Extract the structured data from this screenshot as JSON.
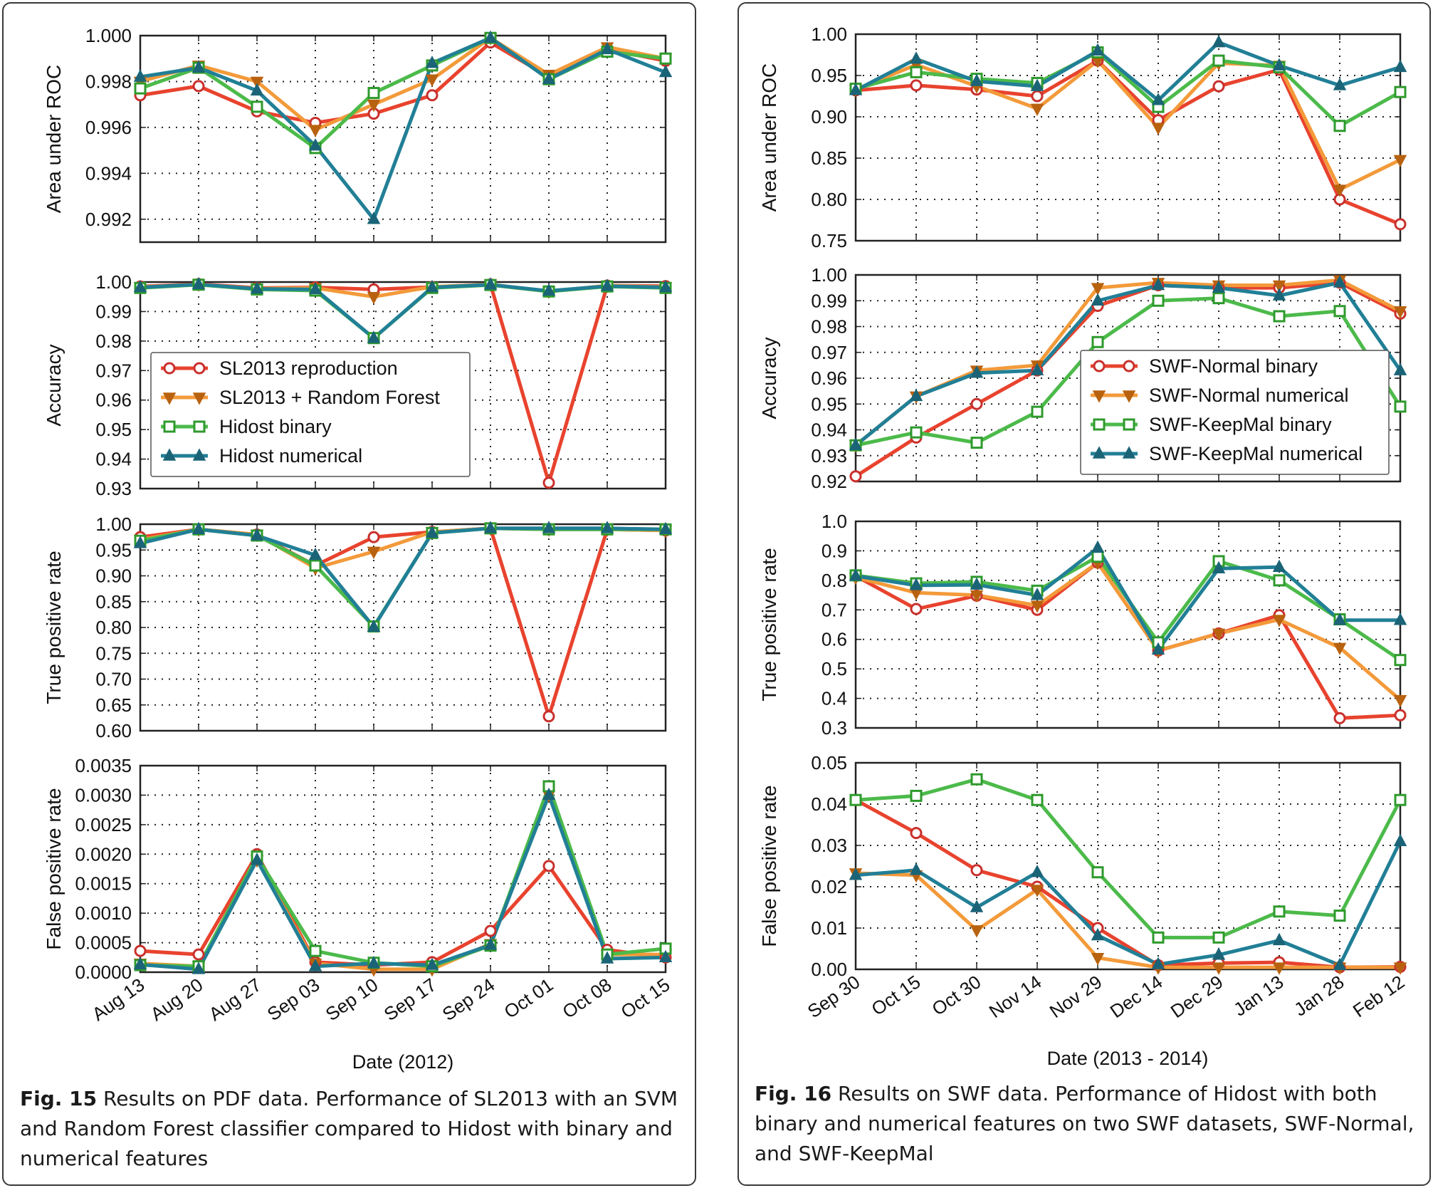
{
  "figures": {
    "fig15": {
      "caption_label": "Fig. 15",
      "caption_text": " Results on PDF data. Performance of SL2013 with an SVM and Random Forest classifier compared to Hidost with binary and numerical features"
    },
    "fig16": {
      "caption_label": "Fig. 16",
      "caption_text": " Results on SWF data. Performance of Hidost with both binary and numerical features on two SWF datasets, SWF-Normal, and SWF-KeepMal"
    }
  },
  "colors": {
    "red": "#e8432e",
    "orange": "#f39a3a",
    "green": "#4cba4a",
    "teal": "#217f96",
    "grid": "#222222",
    "axis": "#222222"
  },
  "chart_data": [
    {
      "figure": "fig15",
      "type": "line",
      "ylabel": "Area under ROC",
      "xlabel": "",
      "categories": [
        "Aug 13",
        "Aug 20",
        "Aug 27",
        "Sep 03",
        "Sep 10",
        "Sep 17",
        "Sep 24",
        "Oct 01",
        "Oct 08",
        "Oct 15"
      ],
      "ylim": [
        0.991,
        1.0
      ],
      "yticks": [
        "0.992",
        "0.994",
        "0.996",
        "0.998",
        "1.000"
      ],
      "yticks_values": [
        0.992,
        0.994,
        0.996,
        0.998,
        1.0
      ],
      "grid": true,
      "series": [
        {
          "name": "SL2013 reproduction",
          "color": "red",
          "marker": "circle",
          "values": [
            0.9974,
            0.9978,
            0.9967,
            0.9962,
            0.9966,
            0.9974,
            0.9997,
            0.9982,
            0.9994,
            0.9989
          ]
        },
        {
          "name": "SL2013 + Random Forest",
          "color": "orange",
          "marker": "tri-down",
          "values": [
            0.998,
            0.9987,
            0.998,
            0.9959,
            0.997,
            0.9981,
            0.9999,
            0.9983,
            0.9995,
            0.999
          ]
        },
        {
          "name": "Hidost binary",
          "color": "green",
          "marker": "square",
          "values": [
            0.9977,
            0.9986,
            0.9969,
            0.9951,
            0.9975,
            0.9987,
            0.9999,
            0.9981,
            0.9993,
            0.999
          ]
        },
        {
          "name": "Hidost numerical",
          "color": "teal",
          "marker": "tri-up",
          "values": [
            0.9982,
            0.9986,
            0.9976,
            0.9952,
            0.992,
            0.9988,
            0.9999,
            0.9981,
            0.9994,
            0.9984
          ]
        }
      ]
    },
    {
      "figure": "fig15",
      "type": "line",
      "ylabel": "Accuracy",
      "xlabel": "",
      "categories": [
        "Aug 13",
        "Aug 20",
        "Aug 27",
        "Sep 03",
        "Sep 10",
        "Sep 17",
        "Sep 24",
        "Oct 01",
        "Oct 08",
        "Oct 15"
      ],
      "ylim": [
        0.93,
        1.0
      ],
      "yticks": [
        "0.93",
        "0.94",
        "0.95",
        "0.96",
        "0.97",
        "0.98",
        "0.99",
        "1.00"
      ],
      "yticks_values": [
        0.93,
        0.94,
        0.95,
        0.96,
        0.97,
        0.98,
        0.99,
        1.0
      ],
      "grid": true,
      "legend": "lower-left",
      "series": [
        {
          "name": "SL2013 reproduction",
          "color": "red",
          "marker": "circle",
          "values": [
            0.9985,
            0.9993,
            0.998,
            0.9982,
            0.9975,
            0.9983,
            0.9992,
            0.932,
            0.9988,
            0.9986
          ]
        },
        {
          "name": "SL2013 + Random Forest",
          "color": "orange",
          "marker": "tri-down",
          "values": [
            0.9983,
            0.9992,
            0.9978,
            0.998,
            0.995,
            0.9984,
            0.9992,
            0.9968,
            0.9988,
            0.9983
          ]
        },
        {
          "name": "Hidost binary",
          "color": "green",
          "marker": "square",
          "values": [
            0.998,
            0.9991,
            0.9975,
            0.9971,
            0.981,
            0.998,
            0.999,
            0.9968,
            0.9985,
            0.998
          ]
        },
        {
          "name": "Hidost numerical",
          "color": "teal",
          "marker": "tri-up",
          "values": [
            0.9982,
            0.9992,
            0.9977,
            0.9975,
            0.981,
            0.9982,
            0.9991,
            0.997,
            0.9986,
            0.9982
          ]
        }
      ]
    },
    {
      "figure": "fig15",
      "type": "line",
      "ylabel": "True positive rate",
      "xlabel": "",
      "categories": [
        "Aug 13",
        "Aug 20",
        "Aug 27",
        "Sep 03",
        "Sep 10",
        "Sep 17",
        "Sep 24",
        "Oct 01",
        "Oct 08",
        "Oct 15"
      ],
      "ylim": [
        0.6,
        1.0
      ],
      "yticks": [
        "0.60",
        "0.65",
        "0.70",
        "0.75",
        "0.80",
        "0.85",
        "0.90",
        "0.95",
        "1.00"
      ],
      "yticks_values": [
        0.6,
        0.65,
        0.7,
        0.75,
        0.8,
        0.85,
        0.9,
        0.95,
        1.0
      ],
      "grid": true,
      "series": [
        {
          "name": "SL2013 reproduction",
          "color": "red",
          "marker": "circle",
          "values": [
            0.975,
            0.99,
            0.98,
            0.92,
            0.975,
            0.985,
            0.992,
            0.628,
            0.99,
            0.988
          ]
        },
        {
          "name": "SL2013 + Random Forest",
          "color": "orange",
          "marker": "tri-down",
          "values": [
            0.97,
            0.99,
            0.98,
            0.915,
            0.947,
            0.985,
            0.992,
            0.99,
            0.99,
            0.988
          ]
        },
        {
          "name": "Hidost binary",
          "color": "green",
          "marker": "square",
          "values": [
            0.968,
            0.99,
            0.978,
            0.92,
            0.802,
            0.983,
            0.992,
            0.99,
            0.99,
            0.99
          ]
        },
        {
          "name": "Hidost numerical",
          "color": "teal",
          "marker": "tri-up",
          "values": [
            0.963,
            0.99,
            0.978,
            0.94,
            0.801,
            0.983,
            0.992,
            0.992,
            0.992,
            0.99
          ]
        }
      ]
    },
    {
      "figure": "fig15",
      "type": "line",
      "ylabel": "False positive rate",
      "xlabel": "Date (2012)",
      "categories": [
        "Aug 13",
        "Aug 20",
        "Aug 27",
        "Sep 03",
        "Sep 10",
        "Sep 17",
        "Sep 24",
        "Oct 01",
        "Oct 08",
        "Oct 15"
      ],
      "ylim": [
        0.0,
        0.0035
      ],
      "yticks": [
        "0.0000",
        "0.0005",
        "0.0010",
        "0.0015",
        "0.0020",
        "0.0025",
        "0.0030",
        "0.0035"
      ],
      "yticks_values": [
        0.0,
        0.0005,
        0.001,
        0.0015,
        0.002,
        0.0025,
        0.003,
        0.0035
      ],
      "grid": true,
      "series": [
        {
          "name": "SL2013 reproduction",
          "color": "red",
          "marker": "circle",
          "values": [
            0.00036,
            0.0003,
            0.002,
            0.00017,
            0.00012,
            0.00017,
            0.0007,
            0.0018,
            0.00038,
            0.00025
          ]
        },
        {
          "name": "SL2013 + Random Forest",
          "color": "orange",
          "marker": "tri-down",
          "values": [
            0.00015,
            0.0001,
            0.0019,
            0.00015,
            5e-05,
            5e-05,
            0.00048,
            0.003,
            0.0003,
            0.0003
          ]
        },
        {
          "name": "Hidost binary",
          "color": "green",
          "marker": "square",
          "values": [
            0.00012,
            0.0001,
            0.00196,
            0.00036,
            0.00016,
            0.0001,
            0.00045,
            0.00315,
            0.0003,
            0.0004
          ]
        },
        {
          "name": "Hidost numerical",
          "color": "teal",
          "marker": "tri-up",
          "values": [
            0.00013,
            5e-05,
            0.0019,
            0.0001,
            0.00015,
            0.00012,
            0.00046,
            0.003,
            0.00023,
            0.00025
          ]
        }
      ]
    },
    {
      "figure": "fig16",
      "type": "line",
      "ylabel": "Area under ROC",
      "xlabel": "",
      "categories": [
        "Sep 30",
        "Oct 15",
        "Oct 30",
        "Nov 14",
        "Nov 29",
        "Dec 14",
        "Dec 29",
        "Jan 13",
        "Jan 28",
        "Feb 12"
      ],
      "ylim": [
        0.75,
        1.0
      ],
      "yticks": [
        "0.75",
        "0.80",
        "0.85",
        "0.90",
        "0.95",
        "1.00"
      ],
      "yticks_values": [
        0.75,
        0.8,
        0.85,
        0.9,
        0.95,
        1.0
      ],
      "grid": true,
      "series": [
        {
          "name": "SWF-Normal binary",
          "color": "red",
          "marker": "circle",
          "values": [
            0.932,
            0.938,
            0.933,
            0.925,
            0.968,
            0.896,
            0.937,
            0.957,
            0.8,
            0.77
          ]
        },
        {
          "name": "SWF-Normal numerical",
          "color": "orange",
          "marker": "tri-down",
          "values": [
            0.933,
            0.963,
            0.937,
            0.91,
            0.968,
            0.887,
            0.965,
            0.962,
            0.812,
            0.848
          ]
        },
        {
          "name": "SWF-KeepMal binary",
          "color": "green",
          "marker": "square",
          "values": [
            0.934,
            0.954,
            0.946,
            0.941,
            0.978,
            0.912,
            0.968,
            0.96,
            0.889,
            0.93
          ]
        },
        {
          "name": "SWF-KeepMal numerical",
          "color": "teal",
          "marker": "tri-up",
          "values": [
            0.932,
            0.97,
            0.943,
            0.937,
            0.98,
            0.92,
            0.99,
            0.962,
            0.938,
            0.96
          ]
        }
      ]
    },
    {
      "figure": "fig16",
      "type": "line",
      "ylabel": "Accuracy",
      "xlabel": "",
      "categories": [
        "Sep 30",
        "Oct 15",
        "Oct 30",
        "Nov 14",
        "Nov 29",
        "Dec 14",
        "Dec 29",
        "Jan 13",
        "Jan 28",
        "Feb 12"
      ],
      "ylim": [
        0.92,
        1.0
      ],
      "yticks": [
        "0.92",
        "0.93",
        "0.94",
        "0.95",
        "0.96",
        "0.97",
        "0.98",
        "0.99",
        "1.00"
      ],
      "yticks_values": [
        0.92,
        0.93,
        0.94,
        0.95,
        0.96,
        0.97,
        0.98,
        0.99,
        1.0
      ],
      "grid": true,
      "legend": "lower-right",
      "series": [
        {
          "name": "SWF-Normal binary",
          "color": "red",
          "marker": "circle",
          "values": [
            0.922,
            0.937,
            0.95,
            0.963,
            0.988,
            0.996,
            0.995,
            0.995,
            0.997,
            0.985
          ]
        },
        {
          "name": "SWF-Normal numerical",
          "color": "orange",
          "marker": "tri-down",
          "values": [
            0.934,
            0.953,
            0.963,
            0.965,
            0.995,
            0.997,
            0.996,
            0.996,
            0.998,
            0.986
          ]
        },
        {
          "name": "SWF-KeepMal binary",
          "color": "green",
          "marker": "square",
          "values": [
            0.934,
            0.939,
            0.935,
            0.947,
            0.974,
            0.99,
            0.991,
            0.984,
            0.986,
            0.949
          ]
        },
        {
          "name": "SWF-KeepMal numerical",
          "color": "teal",
          "marker": "tri-up",
          "values": [
            0.934,
            0.953,
            0.962,
            0.963,
            0.99,
            0.996,
            0.995,
            0.992,
            0.997,
            0.963
          ]
        }
      ]
    },
    {
      "figure": "fig16",
      "type": "line",
      "ylabel": "True positive rate",
      "xlabel": "",
      "categories": [
        "Sep 30",
        "Oct 15",
        "Oct 30",
        "Nov 14",
        "Nov 29",
        "Dec 14",
        "Dec 29",
        "Jan 13",
        "Jan 28",
        "Feb 12"
      ],
      "ylim": [
        0.3,
        1.0
      ],
      "yticks": [
        "0.3",
        "0.4",
        "0.5",
        "0.6",
        "0.7",
        "0.8",
        "0.9",
        "1.0"
      ],
      "yticks_values": [
        0.3,
        0.4,
        0.5,
        0.6,
        0.7,
        0.8,
        0.9,
        1.0
      ],
      "grid": true,
      "series": [
        {
          "name": "SWF-Normal binary",
          "color": "red",
          "marker": "circle",
          "values": [
            0.815,
            0.703,
            0.748,
            0.7,
            0.86,
            0.562,
            0.62,
            0.682,
            0.333,
            0.343
          ]
        },
        {
          "name": "SWF-Normal numerical",
          "color": "orange",
          "marker": "tri-down",
          "values": [
            0.81,
            0.758,
            0.75,
            0.715,
            0.86,
            0.562,
            0.62,
            0.667,
            0.572,
            0.395
          ]
        },
        {
          "name": "SWF-KeepMal binary",
          "color": "green",
          "marker": "square",
          "values": [
            0.817,
            0.79,
            0.795,
            0.765,
            0.88,
            0.59,
            0.865,
            0.8,
            0.668,
            0.53
          ]
        },
        {
          "name": "SWF-KeepMal numerical",
          "color": "teal",
          "marker": "tri-up",
          "values": [
            0.815,
            0.783,
            0.785,
            0.75,
            0.91,
            0.565,
            0.84,
            0.845,
            0.665,
            0.665
          ]
        }
      ]
    },
    {
      "figure": "fig16",
      "type": "line",
      "ylabel": "False positive rate",
      "xlabel": "Date (2013 - 2014)",
      "categories": [
        "Sep 30",
        "Oct 15",
        "Oct 30",
        "Nov 14",
        "Nov 29",
        "Dec 14",
        "Dec 29",
        "Jan 13",
        "Jan 28",
        "Feb 12"
      ],
      "ylim": [
        0.0,
        0.05
      ],
      "yticks": [
        "0.00",
        "0.01",
        "0.02",
        "0.03",
        "0.04",
        "0.05"
      ],
      "yticks_values": [
        0.0,
        0.01,
        0.02,
        0.03,
        0.04,
        0.05
      ],
      "grid": true,
      "series": [
        {
          "name": "SWF-Normal binary",
          "color": "red",
          "marker": "circle",
          "values": [
            0.041,
            0.033,
            0.024,
            0.02,
            0.01,
            0.001,
            0.0015,
            0.0017,
            0.0005,
            0.0006
          ]
        },
        {
          "name": "SWF-Normal numerical",
          "color": "orange",
          "marker": "tri-down",
          "values": [
            0.0233,
            0.0228,
            0.0095,
            0.0193,
            0.0028,
            0.0005,
            0.0005,
            0.0005,
            0.0005,
            0.0005
          ]
        },
        {
          "name": "SWF-KeepMal binary",
          "color": "green",
          "marker": "square",
          "values": [
            0.041,
            0.042,
            0.046,
            0.041,
            0.0235,
            0.0077,
            0.0077,
            0.014,
            0.013,
            0.041
          ]
        },
        {
          "name": "SWF-KeepMal numerical",
          "color": "teal",
          "marker": "tri-up",
          "values": [
            0.0228,
            0.024,
            0.015,
            0.0235,
            0.0082,
            0.0012,
            0.0035,
            0.007,
            0.001,
            0.031
          ]
        }
      ]
    }
  ]
}
